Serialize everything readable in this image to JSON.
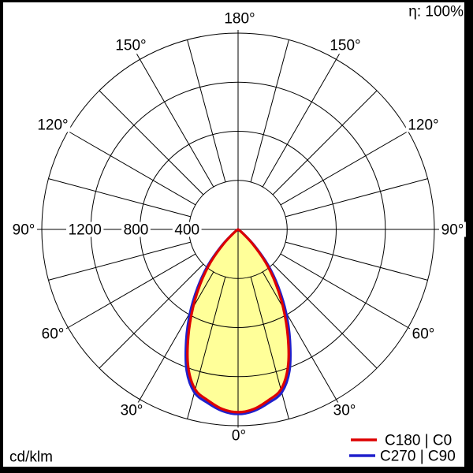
{
  "header": {
    "efficiency": "η: 100%"
  },
  "footer": {
    "unit": "cd/klm"
  },
  "legend": {
    "entries": [
      {
        "label": "C180 | C0",
        "color": "#dd0000"
      },
      {
        "label": "C270 | C90",
        "color": "#2020cc"
      }
    ]
  },
  "chart_data": {
    "type": "line",
    "polar": true,
    "description": "Polar luminous intensity distribution of a luminaire, 0° at nadir (bottom), 180° at top, mirrored left/right",
    "efficiency": "100%",
    "radial_unit": "cd/klm",
    "radial_ticks": [
      400,
      800,
      1200,
      1600
    ],
    "radial_tick_labels": [
      "400",
      "800",
      "1200"
    ],
    "radial_max": 1600,
    "angle_labels": [
      "0°",
      "30°",
      "60°",
      "90°",
      "120°",
      "150°",
      "180°"
    ],
    "spoke_step_deg": 15,
    "gamma_deg": [
      0,
      5,
      10,
      15,
      20,
      25,
      30,
      35,
      40,
      45,
      50,
      55,
      60
    ],
    "series": [
      {
        "name": "C180 | C0",
        "color": "#dd0000",
        "values": [
          1490,
          1470,
          1415,
          1350,
          1190,
          960,
          735,
          530,
          345,
          170,
          50,
          10,
          0
        ]
      },
      {
        "name": "C270 | C90",
        "color": "#2020cc",
        "values": [
          1505,
          1485,
          1435,
          1375,
          1225,
          1000,
          780,
          570,
          380,
          190,
          60,
          12,
          0
        ]
      }
    ],
    "fill_color": "#ffff99",
    "grid_color": "#000000",
    "legend_position": "bottom-right"
  }
}
